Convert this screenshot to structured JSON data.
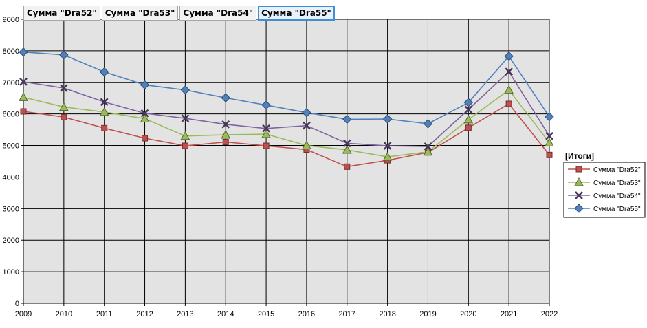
{
  "field_buttons": [
    {
      "label": "Сумма \"Dra52\"",
      "selected": false
    },
    {
      "label": "Сумма \"Dra53\"",
      "selected": false
    },
    {
      "label": "Сумма \"Dra54\"",
      "selected": false
    },
    {
      "label": "Сумма \"Dra55\"",
      "selected": true
    }
  ],
  "chart_data": {
    "type": "line",
    "x": [
      2009,
      2010,
      2011,
      2012,
      2013,
      2014,
      2015,
      2016,
      2017,
      2018,
      2019,
      2020,
      2021,
      2022
    ],
    "ylim": [
      0,
      9000
    ],
    "ytick_step": 1000,
    "grid": true,
    "legend_title": "[Итоги]",
    "legend_position": "right",
    "series": [
      {
        "name": "Сумма \"Dra52\"",
        "color": "#c0504d",
        "marker": "square",
        "values": [
          6080,
          5900,
          5550,
          5230,
          4990,
          5110,
          4990,
          4870,
          4330,
          4530,
          4780,
          5560,
          6320,
          4700
        ]
      },
      {
        "name": "Сумма \"Dra53\"",
        "color": "#9bbb59",
        "marker": "triangle",
        "values": [
          6530,
          6220,
          6060,
          5850,
          5300,
          5340,
          5360,
          5000,
          4860,
          4640,
          4800,
          5820,
          6760,
          5090
        ]
      },
      {
        "name": "Сумма \"Dra54\"",
        "color": "#8064a2",
        "marker": "x",
        "values": [
          7020,
          6820,
          6380,
          6020,
          5860,
          5670,
          5540,
          5630,
          5070,
          4990,
          4970,
          6140,
          7340,
          5300
        ]
      },
      {
        "name": "Сумма \"Dra55\"",
        "color": "#4f81bd",
        "marker": "diamond",
        "values": [
          7960,
          7870,
          7330,
          6920,
          6760,
          6510,
          6280,
          6040,
          5830,
          5840,
          5690,
          6360,
          7830,
          5910
        ]
      }
    ]
  }
}
